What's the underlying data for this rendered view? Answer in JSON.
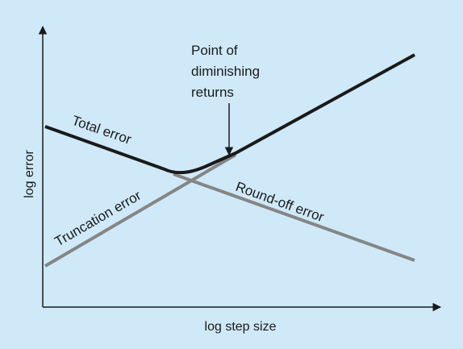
{
  "diagram": {
    "x_axis_label": "log step size",
    "y_axis_label": "log error",
    "curves": {
      "total": "Total error",
      "truncation": "Truncation error",
      "roundoff": "Round-off error"
    },
    "annotation": {
      "line1": "Point of",
      "line2": "diminishing",
      "line3": "returns"
    }
  },
  "colors": {
    "background": "#cfe9f8",
    "total_curve": "#1a1a1a",
    "component_curves": "#858585",
    "axes": "#1a1a1a"
  }
}
